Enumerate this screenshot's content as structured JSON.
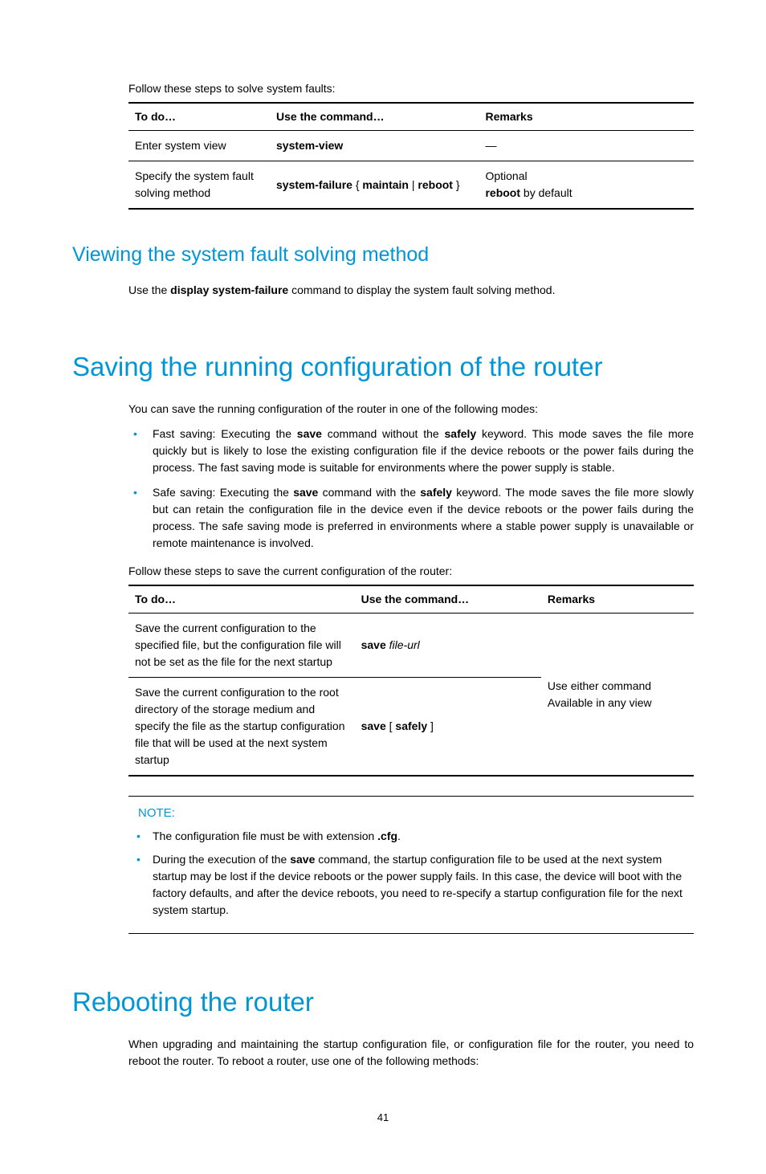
{
  "colors": {
    "accent": "#0096d6",
    "text": "#000000",
    "background": "#ffffff"
  },
  "typography": {
    "body_fontsize": 14,
    "h1_fontsize": 33,
    "h2_fontsize": 25,
    "font_family": "Arial, Helvetica, sans-serif"
  },
  "intro1": "Follow these steps to solve system faults:",
  "table1": {
    "headers": [
      "To do…",
      "Use the command…",
      "Remarks"
    ],
    "col_widths_pct": [
      25,
      37,
      38
    ],
    "rows": [
      {
        "todo": "Enter system view",
        "cmd_bold": "system-view",
        "remarks_plain": "—"
      },
      {
        "todo": "Specify the system fault solving method",
        "cmd_prefix": "system-failure",
        "cmd_rest": " { ",
        "cmd_bold2": "maintain",
        "cmd_rest2": " | ",
        "cmd_bold3": "reboot",
        "cmd_rest3": " }",
        "remarks_line1": "Optional",
        "remarks_bold": "reboot",
        "remarks_after": " by default"
      }
    ]
  },
  "h2_1": "Viewing the system fault solving method",
  "p_view_pre": "Use the ",
  "p_view_bold": "display system-failure",
  "p_view_post": " command to display the system fault solving method.",
  "h1_1": "Saving the running configuration of the router",
  "p_save_intro": "You can save the running configuration of the router in one of the following modes:",
  "bullet1_pre": "Fast saving: Executing the ",
  "bullet1_b1": "save",
  "bullet1_mid": " command without the ",
  "bullet1_b2": "safely",
  "bullet1_post": " keyword. This mode saves the file more quickly but is likely to lose the existing configuration file if the device reboots or the power fails during the process. The fast saving mode is suitable for environments where the power supply is stable.",
  "bullet2_pre": "Safe saving: Executing the ",
  "bullet2_b1": "save",
  "bullet2_mid": " command with the ",
  "bullet2_b2": "safely",
  "bullet2_post": " keyword. The mode saves the file more slowly but can retain the configuration file in the device even if the device reboots or the power fails during the process. The safe saving mode is preferred in environments where a stable power supply is unavailable or remote maintenance is involved.",
  "intro2": "Follow these steps to save the current configuration of the router:",
  "table2": {
    "headers": [
      "To do…",
      "Use the command…",
      "Remarks"
    ],
    "col_widths_pct": [
      40,
      33,
      27
    ],
    "rows": [
      {
        "todo": "Save the current configuration to the specified file, but the configuration file will not be set as the file for the next startup",
        "cmd_bold": "save",
        "cmd_italic": " file-url"
      },
      {
        "todo": "Save the current configuration to the root directory of the storage medium and specify the file as the startup configuration file that will be used at the next system startup",
        "cmd_bold": "save",
        "cmd_rest": " [ ",
        "cmd_bold2": "safely",
        "cmd_rest2": " ]"
      }
    ],
    "remarks_line1": "Use either command",
    "remarks_line2": "Available in any view"
  },
  "note_label": "NOTE:",
  "note1_pre": "The configuration file must be with extension ",
  "note1_bold": ".cfg",
  "note1_post": ".",
  "note2_pre": "During the execution of the ",
  "note2_bold": "save",
  "note2_post": " command, the startup configuration file to be used at the next system startup may be lost if the device reboots or the power supply fails. In this case, the device will boot with the factory defaults, and after the device reboots, you need to re-specify a startup configuration file for the next system startup.",
  "h1_2": "Rebooting the router",
  "p_reboot": "When upgrading and maintaining the startup configuration file, or configuration file for the router, you need to reboot the router. To reboot a router, use one of the following methods:",
  "page_number": "41"
}
